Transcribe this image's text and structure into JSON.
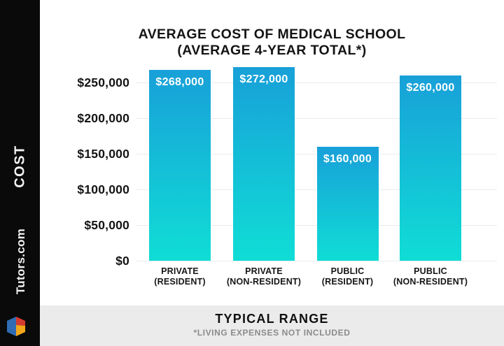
{
  "sidebar": {
    "vertical_label": "COST",
    "brand": "Tutors.com",
    "logo_icon": "tutors-cube-logo"
  },
  "title": {
    "line1": "AVERAGE COST OF MEDICAL SCHOOL",
    "line2": "(AVERAGE 4-YEAR TOTAL*)"
  },
  "chart_data": {
    "type": "bar",
    "title": "AVERAGE COST OF MEDICAL SCHOOL (AVERAGE 4-YEAR TOTAL*)",
    "categories": [
      "PRIVATE (RESIDENT)",
      "PRIVATE (NON-RESIDENT)",
      "PUBLIC (RESIDENT)",
      "PUBLIC (NON-RESIDENT)"
    ],
    "category_lines": [
      [
        "PRIVATE",
        "(RESIDENT)"
      ],
      [
        "PRIVATE",
        "(NON-RESIDENT)"
      ],
      [
        "PUBLIC",
        "(RESIDENT)"
      ],
      [
        "PUBLIC",
        "(NON-RESIDENT)"
      ]
    ],
    "values": [
      268000,
      272000,
      160000,
      260000
    ],
    "bar_labels": [
      "$268,000",
      "$272,000",
      "$160,000",
      "$260,000"
    ],
    "y_ticks": [
      {
        "value": 250000,
        "label": "$250,000"
      },
      {
        "value": 200000,
        "label": "$200,000"
      },
      {
        "value": 150000,
        "label": "$150,000"
      },
      {
        "value": 100000,
        "label": "$100,000"
      },
      {
        "value": 50000,
        "label": "$50,000"
      },
      {
        "value": 0,
        "label": "$0"
      }
    ],
    "ylim": [
      0,
      250000
    ],
    "grid": true,
    "legend": false,
    "ylabel": "",
    "xlabel": ""
  },
  "footer": {
    "heading": "TYPICAL RANGE",
    "note": "*LIVING EXPENSES NOT INCLUDED"
  },
  "colors": {
    "sidebar_bg": "#0a0a0a",
    "panel_bg": "#ffffff",
    "footer_bg": "#ebebeb",
    "gridline": "#e7ecee",
    "title_text": "#141414",
    "tick_text": "#141414",
    "bar_top": "#18a0d8",
    "bar_bottom": "#10ddd6",
    "bar_label_text": "#ffffff",
    "note_text": "#8b8b8b",
    "logo_blue": "#2f6cb3",
    "logo_red": "#d63a2f",
    "logo_yellow": "#f2a71b"
  }
}
